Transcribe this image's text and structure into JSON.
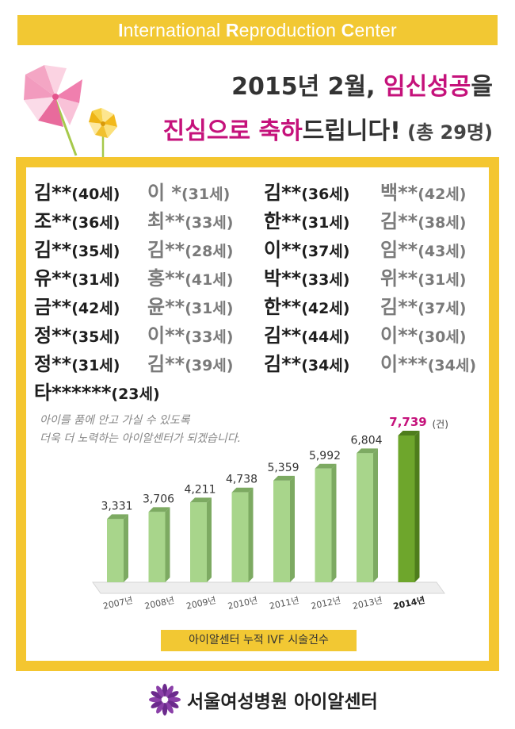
{
  "banner": {
    "parts": [
      {
        "cap": "I",
        "rest": "nternational "
      },
      {
        "cap": "R",
        "rest": "eproduction "
      },
      {
        "cap": "C",
        "rest": "enter"
      }
    ]
  },
  "headline": {
    "line1_prefix": "2015년 2월, ",
    "line1_highlight": "임신성공",
    "line1_suffix": "을",
    "line2_highlight1": "진심으로 축하",
    "line2_text": "드립니다!",
    "line2_sub": " (총 29명)"
  },
  "names": [
    [
      {
        "n": "김**",
        "a": "(40세)",
        "s": "dark"
      },
      {
        "n": "이  *",
        "a": "(31세)",
        "s": "gray"
      },
      {
        "n": "김**",
        "a": "(36세)",
        "s": "dark"
      },
      {
        "n": "백**",
        "a": "(42세)",
        "s": "gray"
      }
    ],
    [
      {
        "n": "조**",
        "a": "(36세)",
        "s": "dark"
      },
      {
        "n": "최**",
        "a": "(33세)",
        "s": "gray"
      },
      {
        "n": "한**",
        "a": "(31세)",
        "s": "dark"
      },
      {
        "n": "김**",
        "a": "(38세)",
        "s": "gray"
      }
    ],
    [
      {
        "n": "김**",
        "a": "(35세)",
        "s": "dark"
      },
      {
        "n": "김**",
        "a": "(28세)",
        "s": "gray"
      },
      {
        "n": "이**",
        "a": "(37세)",
        "s": "dark"
      },
      {
        "n": "임**",
        "a": "(43세)",
        "s": "gray"
      }
    ],
    [
      {
        "n": "유**",
        "a": "(31세)",
        "s": "dark"
      },
      {
        "n": "홍**",
        "a": "(41세)",
        "s": "gray"
      },
      {
        "n": "박**",
        "a": "(33세)",
        "s": "dark"
      },
      {
        "n": "위**",
        "a": "(31세)",
        "s": "gray"
      }
    ],
    [
      {
        "n": "금**",
        "a": "(42세)",
        "s": "dark"
      },
      {
        "n": "윤**",
        "a": "(31세)",
        "s": "gray"
      },
      {
        "n": "한**",
        "a": "(42세)",
        "s": "dark"
      },
      {
        "n": "김**",
        "a": "(37세)",
        "s": "gray"
      }
    ],
    [
      {
        "n": "정**",
        "a": "(35세)",
        "s": "dark"
      },
      {
        "n": "이**",
        "a": "(33세)",
        "s": "gray"
      },
      {
        "n": "김**",
        "a": "(44세)",
        "s": "dark"
      },
      {
        "n": "이**",
        "a": "(30세)",
        "s": "gray"
      }
    ],
    [
      {
        "n": "정**",
        "a": "(31세)",
        "s": "dark"
      },
      {
        "n": "김**",
        "a": "(39세)",
        "s": "gray"
      },
      {
        "n": "김**",
        "a": "(34세)",
        "s": "dark"
      },
      {
        "n": "이***",
        "a": "(34세)",
        "s": "gray"
      }
    ],
    [
      {
        "n": "타******",
        "a": "(23세)",
        "s": "dark"
      }
    ]
  ],
  "motto": {
    "line1": "아이를 품에 안고 가실 수 있도록",
    "line2": "더욱 더 노력하는 아이알센터가 되겠습니다."
  },
  "chart_data": {
    "type": "bar",
    "categories": [
      "2007년",
      "2008년",
      "2009년",
      "2010년",
      "2011년",
      "2012년",
      "2013년",
      "2014년"
    ],
    "values": [
      3331,
      3706,
      4211,
      4738,
      5359,
      5992,
      6804,
      7739
    ],
    "value_labels": [
      "3,331",
      "3,706",
      "4,211",
      "4,738",
      "5,359",
      "5,992",
      "6,804",
      "7,739"
    ],
    "unit_label": "(건)",
    "highlight_index": 7,
    "colors": {
      "bar": "#a8d58b",
      "bar_side": "#7daa62",
      "highlight": "#6ea62c",
      "highlight_side": "#4e7d1c",
      "highlight_label": "#c5127b"
    }
  },
  "caption": "아이알센터 누적 IVF 시술건수",
  "footer": {
    "name": "서울여성병원 아이알센터"
  },
  "colors": {
    "accent_yellow": "#f2c833",
    "accent_pink": "#c5127b"
  }
}
